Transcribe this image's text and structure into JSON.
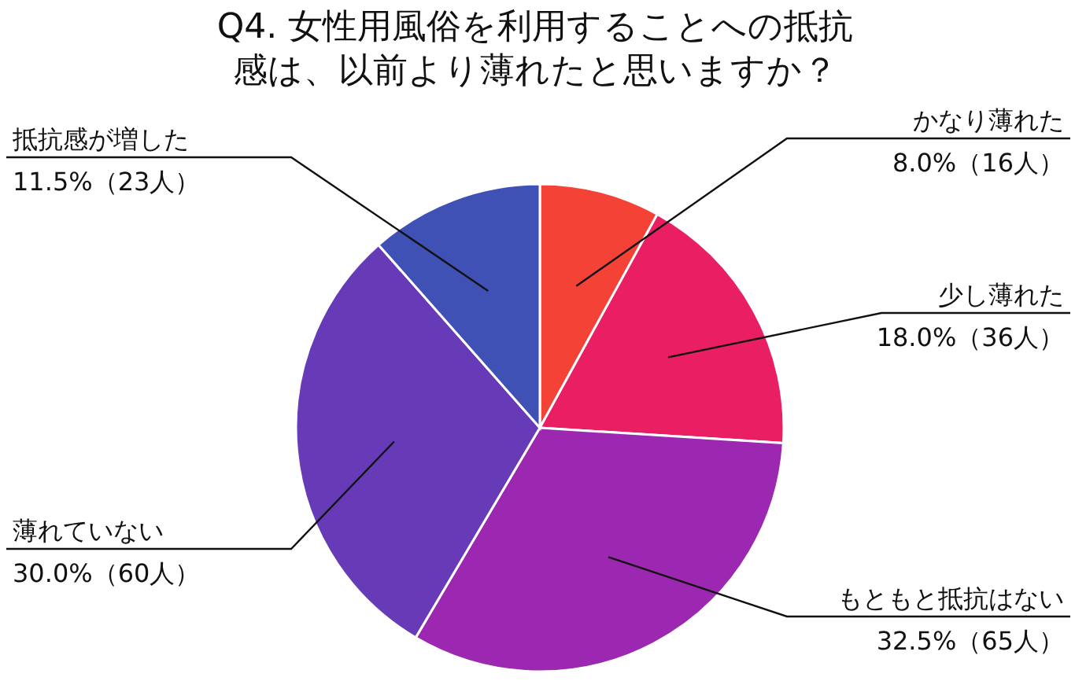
{
  "chart_data": {
    "type": "pie",
    "title": "Q4. 女性用風俗を利用することへの抵抗感は、以前より薄れたと思いますか？",
    "categories": [
      "かなり薄れた",
      "少し薄れた",
      "もともと抵抗はない",
      "薄れていない",
      "抵抗感が増した"
    ],
    "values": [
      8.0,
      18.0,
      32.5,
      30.0,
      11.5
    ],
    "value_labels": [
      "8.0%（16人）",
      "18.0%（36人）",
      "32.5%（65人）",
      "30.0%（60人）",
      "11.5%（23人）"
    ],
    "colors": [
      "#f44336",
      "#e91e63",
      "#9c27b0",
      "#673ab7",
      "#3f51b5"
    ]
  }
}
